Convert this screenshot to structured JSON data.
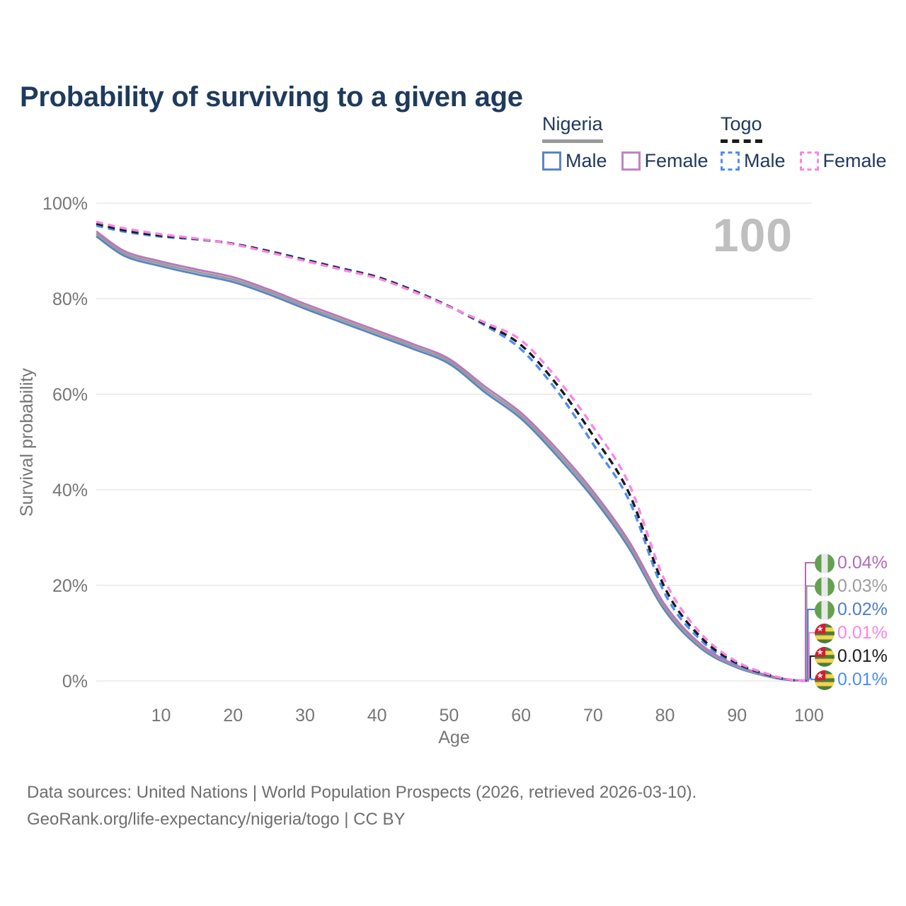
{
  "title": "Probability of surviving to a given age",
  "watermark": "100",
  "legend": {
    "groups": [
      {
        "label": "Nigeria",
        "line_style": "solid",
        "underline_color": "#9a9a9a",
        "items": [
          {
            "label": "Male",
            "color": "#5b86c2"
          },
          {
            "label": "Female",
            "color": "#c083c3"
          }
        ]
      },
      {
        "label": "Togo",
        "line_style": "dashed",
        "underline_color": "#1a1a1a",
        "items": [
          {
            "label": "Male",
            "color": "#4d8ef7"
          },
          {
            "label": "Female",
            "color": "#fb85e6"
          }
        ]
      }
    ]
  },
  "chart_data": {
    "type": "line",
    "title": "Probability of surviving to a given age",
    "xlabel": "Age",
    "ylabel": "Survival probability",
    "xlim": [
      1,
      100
    ],
    "ylim": [
      0,
      100
    ],
    "grid": "horizontal",
    "x_ticks": [
      10,
      20,
      30,
      40,
      50,
      60,
      70,
      80,
      90,
      100
    ],
    "y_ticks": [
      {
        "v": 100,
        "label": "100%"
      },
      {
        "v": 80,
        "label": "80%"
      },
      {
        "v": 60,
        "label": "60%"
      },
      {
        "v": 40,
        "label": "40%"
      },
      {
        "v": 20,
        "label": "20%"
      },
      {
        "v": 0,
        "label": "0%"
      }
    ],
    "x": [
      1,
      5,
      10,
      15,
      20,
      25,
      30,
      35,
      40,
      45,
      50,
      55,
      60,
      65,
      70,
      75,
      80,
      85,
      90,
      95,
      98,
      100
    ],
    "series": [
      {
        "name": "Nigeria Male",
        "country": "Nigeria",
        "sex": "Male",
        "color": "#5b86c2",
        "dashed": false,
        "values": [
          93.1,
          88.9,
          86.8,
          85.1,
          83.5,
          80.9,
          77.9,
          75.1,
          72.3,
          69.5,
          66.4,
          60.4,
          54.9,
          47.1,
          38.3,
          27.8,
          14.7,
          6.8,
          2.8,
          0.7,
          0.1,
          0.02
        ]
      },
      {
        "name": "Nigeria",
        "country": "Nigeria",
        "sex": "Both",
        "color": "#9a9a9a",
        "dashed": false,
        "values": [
          93.6,
          89.4,
          87.3,
          85.6,
          84.0,
          81.4,
          78.4,
          75.6,
          72.8,
          70.0,
          66.9,
          61.0,
          55.5,
          47.8,
          39.0,
          28.5,
          15.3,
          7.2,
          3.0,
          0.8,
          0.12,
          0.03
        ]
      },
      {
        "name": "Nigeria Female",
        "country": "Nigeria",
        "sex": "Female",
        "color": "#b679ba",
        "dashed": false,
        "values": [
          94.1,
          89.9,
          87.8,
          86.1,
          84.5,
          81.9,
          78.9,
          76.1,
          73.3,
          70.5,
          67.4,
          61.6,
          56.1,
          48.5,
          39.7,
          29.2,
          15.9,
          7.6,
          3.2,
          0.9,
          0.15,
          0.04
        ]
      },
      {
        "name": "Togo Male",
        "country": "Togo",
        "sex": "Male",
        "color": "#4d8ef7",
        "dashed": true,
        "values": [
          95.3,
          94.0,
          93.0,
          92.4,
          91.5,
          90.0,
          88.2,
          86.4,
          84.6,
          81.8,
          78.4,
          74.4,
          69.4,
          60.7,
          49.6,
          37.8,
          18.2,
          8.5,
          3.4,
          0.9,
          0.1,
          0.01
        ]
      },
      {
        "name": "Togo",
        "country": "Togo",
        "sex": "Both",
        "color": "#1a1a1a",
        "dashed": true,
        "values": [
          95.7,
          94.3,
          93.2,
          92.5,
          91.5,
          89.9,
          88.1,
          86.3,
          84.5,
          81.7,
          78.4,
          74.7,
          70.3,
          62.0,
          51.4,
          39.3,
          19.4,
          9.1,
          3.7,
          1.0,
          0.12,
          0.01
        ]
      },
      {
        "name": "Togo Female",
        "country": "Togo",
        "sex": "Female",
        "color": "#fb85e6",
        "dashed": true,
        "values": [
          96.1,
          94.7,
          93.5,
          92.6,
          91.4,
          89.7,
          87.9,
          86.1,
          84.3,
          81.5,
          78.3,
          75.0,
          71.3,
          63.3,
          53.2,
          41.2,
          20.9,
          9.9,
          4.0,
          1.1,
          0.15,
          0.01
        ]
      }
    ]
  },
  "end_labels": [
    {
      "flag": "nigeria",
      "series": "Nigeria Female",
      "value": "0.04%",
      "color": "#b06cb6"
    },
    {
      "flag": "nigeria",
      "series": "Nigeria",
      "value": "0.03%",
      "color": "#9e9e9e"
    },
    {
      "flag": "nigeria",
      "series": "Nigeria Male",
      "value": "0.02%",
      "color": "#4f7ec9"
    },
    {
      "flag": "togo",
      "series": "Togo Female",
      "value": "0.01%",
      "color": "#fb85e6"
    },
    {
      "flag": "togo",
      "series": "Togo",
      "value": "0.01%",
      "color": "#1c1c1c"
    },
    {
      "flag": "togo",
      "series": "Togo Male",
      "value": "0.01%",
      "color": "#4d8ef7"
    }
  ],
  "footer": {
    "line1": "Data sources: United Nations | World Population Prospects (2026, retrieved 2026-03-10).",
    "line2": "GeoRank.org/life-expectancy/nigeria/togo | CC BY"
  }
}
